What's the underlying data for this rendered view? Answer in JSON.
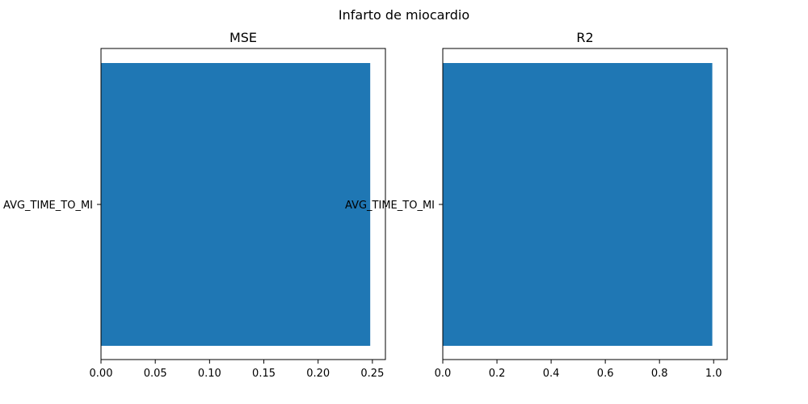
{
  "figure": {
    "title": "Infarto de miocardio"
  },
  "colors": {
    "bar": "#1f77b4",
    "axis": "#000000",
    "background": "#ffffff"
  },
  "chart_data": [
    {
      "type": "bar",
      "orientation": "horizontal",
      "title": "MSE",
      "categories": [
        "AVG_TIME_TO_MI"
      ],
      "values": [
        0.248
      ],
      "xlim": [
        0,
        0.262
      ],
      "xticks": [
        0,
        0.05,
        0.1,
        0.15,
        0.2,
        0.25
      ],
      "xtick_labels": [
        "0.00",
        "0.05",
        "0.10",
        "0.15",
        "0.20",
        "0.25"
      ],
      "xlabel": "",
      "ylabel": "",
      "grid": false
    },
    {
      "type": "bar",
      "orientation": "horizontal",
      "title": "R2",
      "categories": [
        "AVG_TIME_TO_MI"
      ],
      "values": [
        0.995
      ],
      "xlim": [
        0,
        1.05
      ],
      "xticks": [
        0,
        0.2,
        0.4,
        0.6,
        0.8,
        1.0
      ],
      "xtick_labels": [
        "0.0",
        "0.2",
        "0.4",
        "0.6",
        "0.8",
        "1.0"
      ],
      "xlabel": "",
      "ylabel": "",
      "grid": false
    }
  ]
}
